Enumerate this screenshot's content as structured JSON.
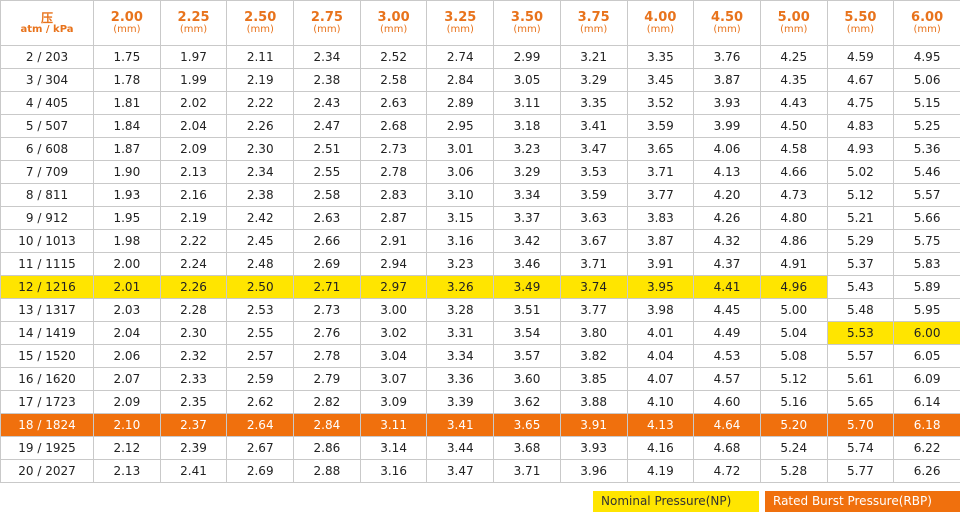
{
  "header": {
    "corner_top": "压",
    "corner_bottom": "atm / kPa",
    "unit": "(mm)",
    "diameters": [
      "2.00",
      "2.25",
      "2.50",
      "2.75",
      "3.00",
      "3.25",
      "3.50",
      "3.75",
      "4.00",
      "4.50",
      "5.00",
      "5.50",
      "6.00"
    ]
  },
  "rows": [
    {
      "pressure": "2 / 203",
      "values": [
        "1.75",
        "1.97",
        "2.11",
        "2.34",
        "2.52",
        "2.74",
        "2.99",
        "3.21",
        "3.35",
        "3.76",
        "4.25",
        "4.59",
        "4.95"
      ]
    },
    {
      "pressure": "3 / 304",
      "values": [
        "1.78",
        "1.99",
        "2.19",
        "2.38",
        "2.58",
        "2.84",
        "3.05",
        "3.29",
        "3.45",
        "3.87",
        "4.35",
        "4.67",
        "5.06"
      ]
    },
    {
      "pressure": "4 / 405",
      "values": [
        "1.81",
        "2.02",
        "2.22",
        "2.43",
        "2.63",
        "2.89",
        "3.11",
        "3.35",
        "3.52",
        "3.93",
        "4.43",
        "4.75",
        "5.15"
      ]
    },
    {
      "pressure": "5 / 507",
      "values": [
        "1.84",
        "2.04",
        "2.26",
        "2.47",
        "2.68",
        "2.95",
        "3.18",
        "3.41",
        "3.59",
        "3.99",
        "4.50",
        "4.83",
        "5.25"
      ]
    },
    {
      "pressure": "6 / 608",
      "values": [
        "1.87",
        "2.09",
        "2.30",
        "2.51",
        "2.73",
        "3.01",
        "3.23",
        "3.47",
        "3.65",
        "4.06",
        "4.58",
        "4.93",
        "5.36"
      ]
    },
    {
      "pressure": "7 / 709",
      "values": [
        "1.90",
        "2.13",
        "2.34",
        "2.55",
        "2.78",
        "3.06",
        "3.29",
        "3.53",
        "3.71",
        "4.13",
        "4.66",
        "5.02",
        "5.46"
      ]
    },
    {
      "pressure": "8 / 811",
      "values": [
        "1.93",
        "2.16",
        "2.38",
        "2.58",
        "2.83",
        "3.10",
        "3.34",
        "3.59",
        "3.77",
        "4.20",
        "4.73",
        "5.12",
        "5.57"
      ]
    },
    {
      "pressure": "9 / 912",
      "values": [
        "1.95",
        "2.19",
        "2.42",
        "2.63",
        "2.87",
        "3.15",
        "3.37",
        "3.63",
        "3.83",
        "4.26",
        "4.80",
        "5.21",
        "5.66"
      ]
    },
    {
      "pressure": "10 / 1013",
      "values": [
        "1.98",
        "2.22",
        "2.45",
        "2.66",
        "2.91",
        "3.16",
        "3.42",
        "3.67",
        "3.87",
        "4.32",
        "4.86",
        "5.29",
        "5.75"
      ]
    },
    {
      "pressure": "11 / 1115",
      "values": [
        "2.00",
        "2.24",
        "2.48",
        "2.69",
        "2.94",
        "3.23",
        "3.46",
        "3.71",
        "3.91",
        "4.37",
        "4.91",
        "5.37",
        "5.83"
      ]
    },
    {
      "pressure": "12 / 1216",
      "values": [
        "2.01",
        "2.26",
        "2.50",
        "2.71",
        "2.97",
        "3.26",
        "3.49",
        "3.74",
        "3.95",
        "4.41",
        "4.96",
        "5.43",
        "5.89"
      ]
    },
    {
      "pressure": "13 / 1317",
      "values": [
        "2.03",
        "2.28",
        "2.53",
        "2.73",
        "3.00",
        "3.28",
        "3.51",
        "3.77",
        "3.98",
        "4.45",
        "5.00",
        "5.48",
        "5.95"
      ]
    },
    {
      "pressure": "14 / 1419",
      "values": [
        "2.04",
        "2.30",
        "2.55",
        "2.76",
        "3.02",
        "3.31",
        "3.54",
        "3.80",
        "4.01",
        "4.49",
        "5.04",
        "5.53",
        "6.00"
      ]
    },
    {
      "pressure": "15 / 1520",
      "values": [
        "2.06",
        "2.32",
        "2.57",
        "2.78",
        "3.04",
        "3.34",
        "3.57",
        "3.82",
        "4.04",
        "4.53",
        "5.08",
        "5.57",
        "6.05"
      ]
    },
    {
      "pressure": "16 / 1620",
      "values": [
        "2.07",
        "2.33",
        "2.59",
        "2.79",
        "3.07",
        "3.36",
        "3.60",
        "3.85",
        "4.07",
        "4.57",
        "5.12",
        "5.61",
        "6.09"
      ]
    },
    {
      "pressure": "17 / 1723",
      "values": [
        "2.09",
        "2.35",
        "2.62",
        "2.82",
        "3.09",
        "3.39",
        "3.62",
        "3.88",
        "4.10",
        "4.60",
        "5.16",
        "5.65",
        "6.14"
      ]
    },
    {
      "pressure": "18 / 1824",
      "values": [
        "2.10",
        "2.37",
        "2.64",
        "2.84",
        "3.11",
        "3.41",
        "3.65",
        "3.91",
        "4.13",
        "4.64",
        "5.20",
        "5.70",
        "6.18"
      ]
    },
    {
      "pressure": "19 / 1925",
      "values": [
        "2.12",
        "2.39",
        "2.67",
        "2.86",
        "3.14",
        "3.44",
        "3.68",
        "3.93",
        "4.16",
        "4.68",
        "5.24",
        "5.74",
        "6.22"
      ]
    },
    {
      "pressure": "20 / 2027",
      "values": [
        "2.13",
        "2.41",
        "2.69",
        "2.88",
        "3.16",
        "3.47",
        "3.71",
        "3.96",
        "4.19",
        "4.72",
        "5.28",
        "5.77",
        "6.26"
      ]
    }
  ],
  "highlights": {
    "np_row_pressure": "12 / 1216",
    "np_row_diameters": [
      "2.00",
      "2.25",
      "2.50",
      "2.75",
      "3.00",
      "3.25",
      "3.50",
      "3.75",
      "4.00",
      "4.50",
      "5.00"
    ],
    "np_cells": [
      {
        "pressure": "14 / 1419",
        "diameters": [
          "5.50",
          "6.00"
        ]
      }
    ],
    "rbp_row_pressure": "18 / 1824"
  },
  "legend": {
    "np_label": "Nominal Pressure(NP)",
    "rbp_label": "Rated Burst Pressure(RBP)"
  },
  "colors": {
    "header_text": "#e8731c",
    "np_highlight": "#ffe500",
    "rbp_highlight": "#f0700d",
    "grid_line": "#c9c9c9"
  }
}
